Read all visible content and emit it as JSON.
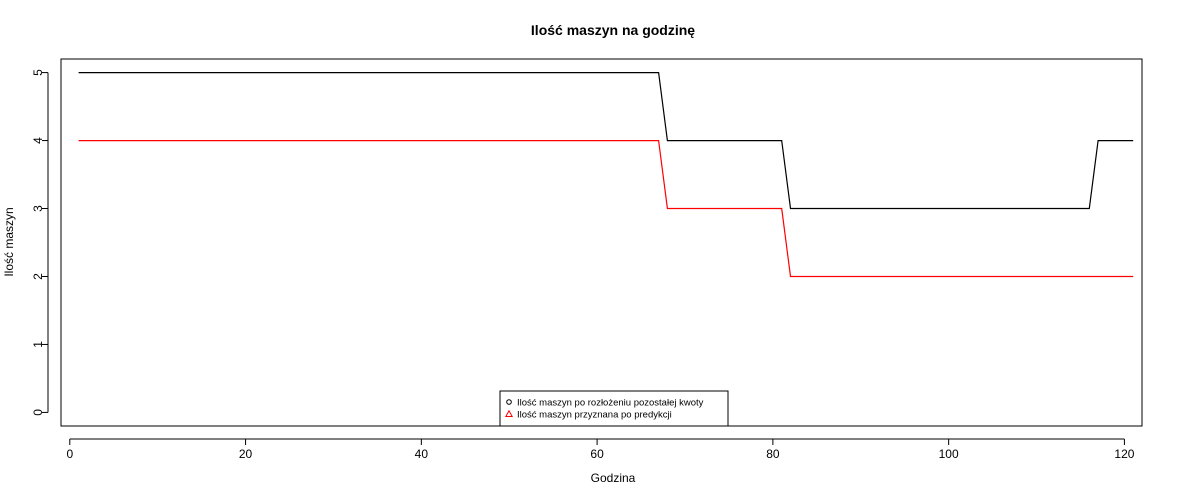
{
  "chart_data": {
    "type": "line",
    "title": "Ilość maszyn na godzinę",
    "xlabel": "Godzina",
    "ylabel": "Ilość maszyn",
    "xlim": [
      -1,
      122
    ],
    "ylim": [
      -0.2,
      5.2
    ],
    "x_ticks": [
      0,
      20,
      40,
      60,
      80,
      100,
      120
    ],
    "y_ticks": [
      0,
      1,
      2,
      3,
      4,
      5
    ],
    "grid": false,
    "legend_position": "bottom-center",
    "series": [
      {
        "name": "Ilość maszyn po rozłożeniu pozostałej kwoty",
        "color": "#000000",
        "marker": "circle",
        "points": [
          [
            1,
            5
          ],
          [
            67,
            5
          ],
          [
            68,
            4
          ],
          [
            81,
            4
          ],
          [
            82,
            3
          ],
          [
            116,
            3
          ],
          [
            117,
            4
          ],
          [
            121,
            4
          ]
        ]
      },
      {
        "name": "Ilość maszyn przyznana po predykcji",
        "color": "#ff0000",
        "marker": "triangle",
        "points": [
          [
            1,
            4
          ],
          [
            67,
            4
          ],
          [
            68,
            3
          ],
          [
            81,
            3
          ],
          [
            82,
            2
          ],
          [
            121,
            2
          ]
        ]
      }
    ]
  }
}
